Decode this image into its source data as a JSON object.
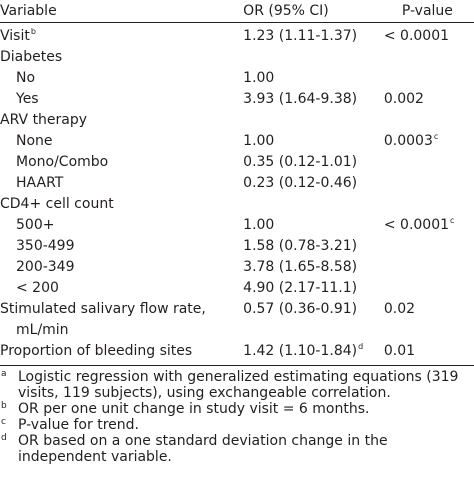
{
  "table": {
    "headers": {
      "variable": "Variable",
      "or": "OR (95% CI)",
      "pvalue": "P-value"
    },
    "rows": [
      {
        "variable": "Visit",
        "variable_sup": "b",
        "or": "1.23 (1.11-1.37)",
        "or_sup": "",
        "pvalue": "< 0.0001",
        "pvalue_sup": "",
        "indent": false
      },
      {
        "variable": "Diabetes",
        "variable_sup": "",
        "or": "",
        "or_sup": "",
        "pvalue": "",
        "pvalue_sup": "",
        "indent": false
      },
      {
        "variable": "No",
        "variable_sup": "",
        "or": "1.00",
        "or_sup": "",
        "pvalue": "",
        "pvalue_sup": "",
        "indent": true
      },
      {
        "variable": "Yes",
        "variable_sup": "",
        "or": "3.93 (1.64-9.38)",
        "or_sup": "",
        "pvalue": "0.002",
        "pvalue_sup": "",
        "indent": true
      },
      {
        "variable": "ARV therapy",
        "variable_sup": "",
        "or": "",
        "or_sup": "",
        "pvalue": "",
        "pvalue_sup": "",
        "indent": false
      },
      {
        "variable": "None",
        "variable_sup": "",
        "or": "1.00",
        "or_sup": "",
        "pvalue": "0.0003",
        "pvalue_sup": "c",
        "indent": true
      },
      {
        "variable": "Mono/Combo",
        "variable_sup": "",
        "or": "0.35 (0.12-1.01)",
        "or_sup": "",
        "pvalue": "",
        "pvalue_sup": "",
        "indent": true
      },
      {
        "variable": "HAART",
        "variable_sup": "",
        "or": "0.23 (0.12-0.46)",
        "or_sup": "",
        "pvalue": "",
        "pvalue_sup": "",
        "indent": true
      },
      {
        "variable": "CD4+ cell count",
        "variable_sup": "",
        "or": "",
        "or_sup": "",
        "pvalue": "",
        "pvalue_sup": "",
        "indent": false
      },
      {
        "variable": "500+",
        "variable_sup": "",
        "or": "1.00",
        "or_sup": "",
        "pvalue": "< 0.0001",
        "pvalue_sup": "c",
        "indent": true
      },
      {
        "variable": "350-499",
        "variable_sup": "",
        "or": "1.58 (0.78-3.21)",
        "or_sup": "",
        "pvalue": "",
        "pvalue_sup": "",
        "indent": true
      },
      {
        "variable": "200-349",
        "variable_sup": "",
        "or": "3.78 (1.65-8.58)",
        "or_sup": "",
        "pvalue": "",
        "pvalue_sup": "",
        "indent": true
      },
      {
        "variable": "< 200",
        "variable_sup": "",
        "or": "4.90 (2.17-11.1)",
        "or_sup": "",
        "pvalue": "",
        "pvalue_sup": "",
        "indent": true
      },
      {
        "variable": "Stimulated salivary flow rate,",
        "variable_sup": "",
        "or": "0.57 (0.36-0.91)",
        "or_sup": "",
        "pvalue": "0.02",
        "pvalue_sup": "",
        "indent": false
      },
      {
        "variable": "mL/min",
        "variable_sup": "",
        "or": "",
        "or_sup": "",
        "pvalue": "",
        "pvalue_sup": "",
        "indent": true
      },
      {
        "variable": "Proportion of bleeding sites",
        "variable_sup": "",
        "or": "1.42 (1.10-1.84)",
        "or_sup": "d",
        "pvalue": "0.01",
        "pvalue_sup": "",
        "indent": false
      }
    ]
  },
  "footnotes": [
    {
      "mark": "a",
      "text": "Logistic regression with generalized estimating equations (319 visits, 119 subjects), using exchangeable correlation."
    },
    {
      "mark": "b",
      "text": "OR per one unit change in study visit = 6 months."
    },
    {
      "mark": "c",
      "text": "P-value for trend."
    },
    {
      "mark": "d",
      "text": "OR based on a one standard deviation change in the independent variable."
    }
  ],
  "colors": {
    "text": "#231f20",
    "background": "#ffffff"
  }
}
